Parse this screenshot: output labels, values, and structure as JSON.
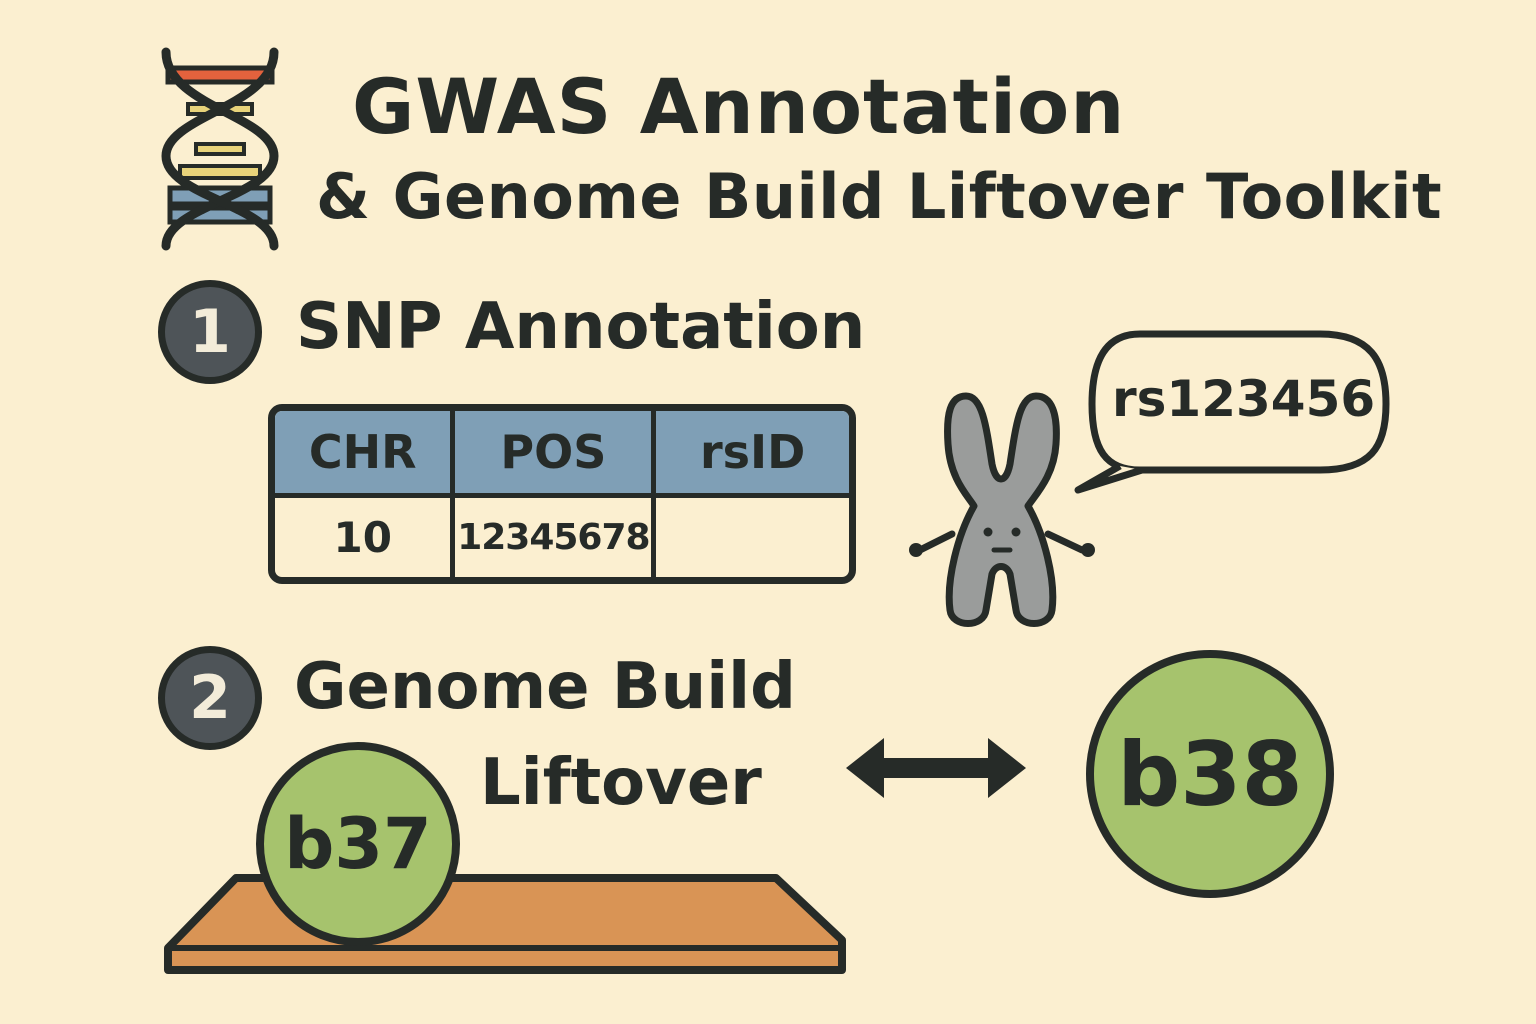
{
  "title": {
    "line1": "GWAS Annotation",
    "line2": "& Genome Build Liftover Toolkit"
  },
  "step1": {
    "number": "1",
    "heading": "SNP Annotation",
    "table": {
      "headers": [
        "CHR",
        "POS",
        "rsID"
      ],
      "row": [
        "10",
        "12345678",
        ""
      ]
    },
    "bubble": "rs123456"
  },
  "step2": {
    "number": "2",
    "heading_line1": "Genome Build",
    "heading_line2": "Liftover",
    "from_build": "b37",
    "to_build": "b38"
  },
  "colors": {
    "background": "#fbefd0",
    "ink": "#262b28",
    "table_header": "#7f9fb6",
    "build_circle": "#a6c36d",
    "board": "#d99455",
    "chromosome": "#9a9c9b",
    "dna_red": "#e4623d",
    "dna_yellow": "#e8d37a",
    "dna_blue": "#7f9fb6"
  },
  "icons": [
    "dna-helix-icon",
    "chromosome-mascot-icon",
    "double-arrow-icon"
  ]
}
